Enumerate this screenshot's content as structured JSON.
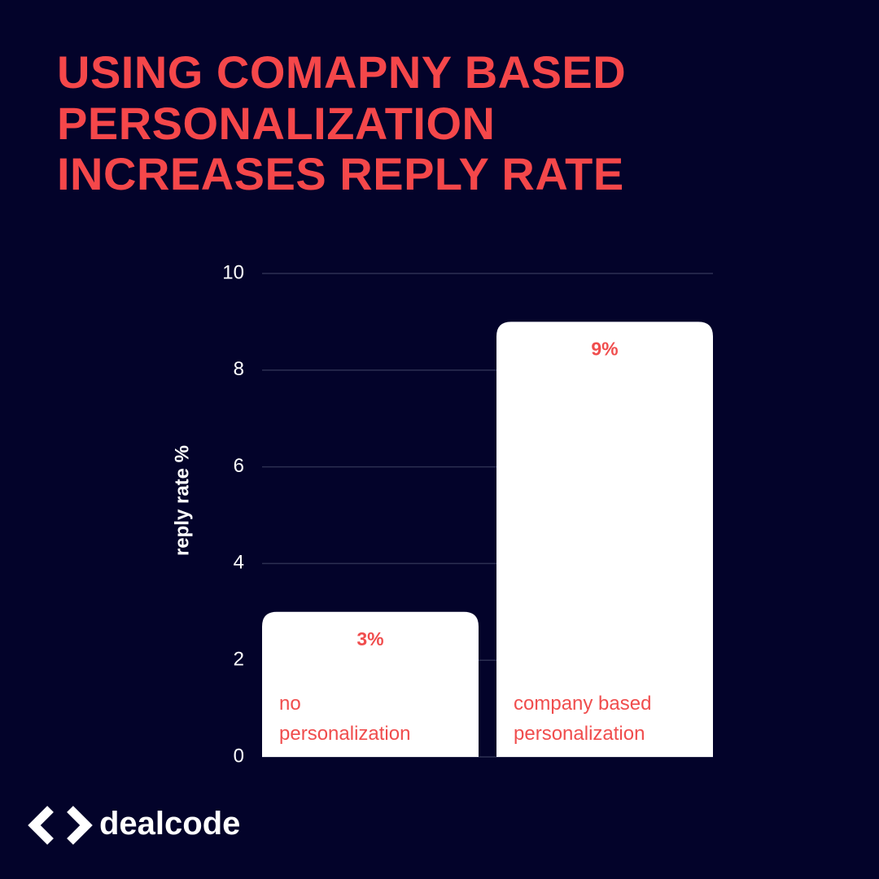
{
  "chart_data": {
    "type": "bar",
    "title": "USING COMAPNY BASED PERSONALIZATION INCREASES REPLY RATE",
    "ylabel": "reply rate %",
    "categories": [
      "no personalization",
      "company based personalization"
    ],
    "values": [
      3,
      9
    ],
    "value_labels": [
      "3%",
      "9%"
    ],
    "color": "#ffffff",
    "label_color": "#f04d4d",
    "ylim": [
      0,
      10
    ],
    "yticks": [
      0,
      2,
      4,
      6,
      8,
      10
    ],
    "grid": true
  },
  "logo": "dealcode"
}
